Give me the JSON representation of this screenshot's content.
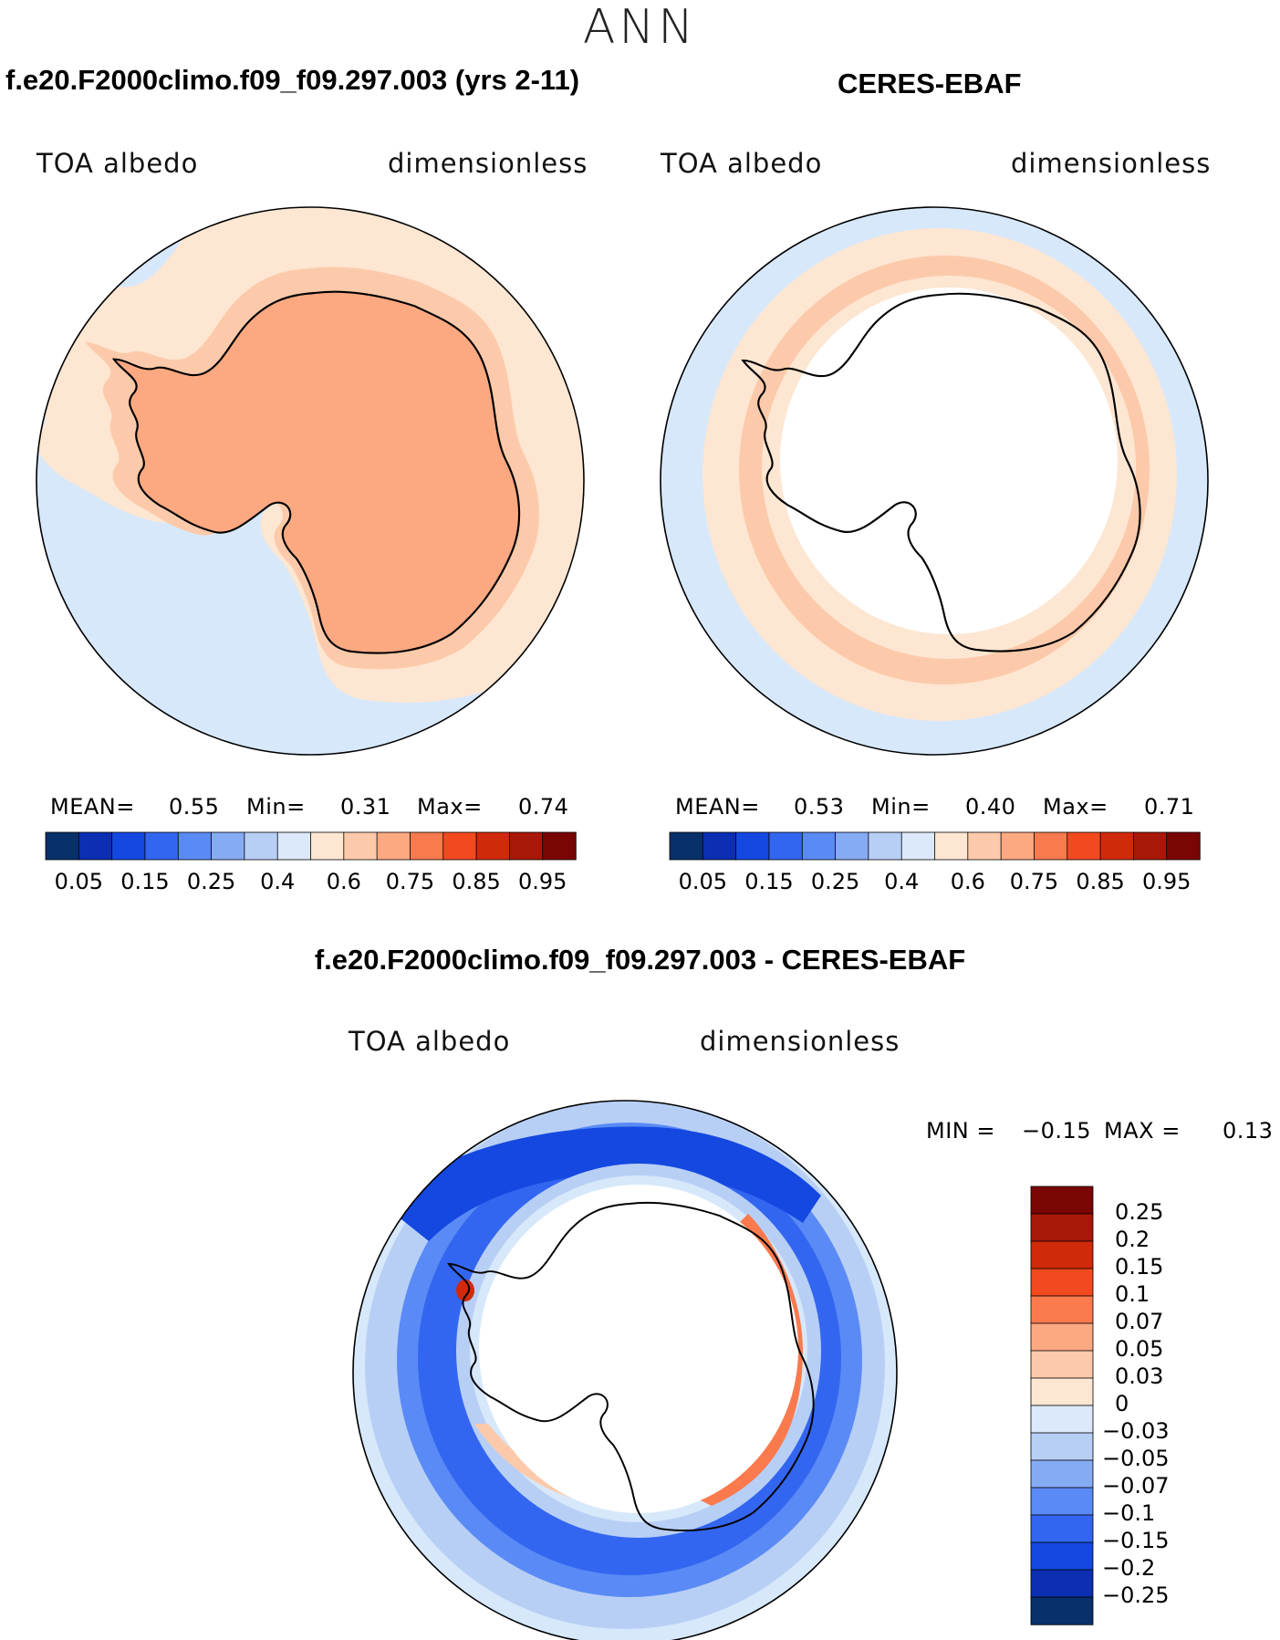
{
  "page": {
    "season": "ANN"
  },
  "panels": [
    {
      "title": "f.e20.F2000climo.f09_f09.297.003 (yrs 2-11)",
      "variable": "TOA albedo",
      "units": "dimensionless",
      "stats": {
        "mean_label": "MEAN=",
        "mean": "0.55",
        "min_label": "Min=",
        "min": "0.31",
        "max_label": "Max=",
        "max": "0.74"
      }
    },
    {
      "title": "CERES-EBAF",
      "variable": "TOA albedo",
      "units": "dimensionless",
      "stats": {
        "mean_label": "MEAN=",
        "mean": "0.53",
        "min_label": "Min=",
        "min": "0.40",
        "max_label": "Max=",
        "max": "0.71"
      }
    }
  ],
  "diff": {
    "title": "f.e20.F2000climo.f09_f09.297.003 - CERES-EBAF",
    "variable": "TOA albedo",
    "units": "dimensionless",
    "stats": {
      "min_label": "MIN =",
      "min": "−0.15",
      "max_label": "MAX =",
      "max": "0.13"
    }
  },
  "abs_colorbar": {
    "labels": [
      "0.05",
      "0.15",
      "0.25",
      "0.4",
      "0.6",
      "0.75",
      "0.85",
      "0.95"
    ],
    "colors": [
      "#08306b",
      "#0b2fb0",
      "#1448e0",
      "#3366f0",
      "#5a8af5",
      "#86abf5",
      "#b8cff5",
      "#dce9fb",
      "#fde6d2",
      "#fccaaa",
      "#fca982",
      "#fa7a4e",
      "#f24a1e",
      "#d02a0a",
      "#a81808",
      "#7a0505"
    ]
  },
  "diff_colorbar": {
    "labels": [
      "0.25",
      "0.2",
      "0.15",
      "0.1",
      "0.07",
      "0.05",
      "0.03",
      "0",
      "−0.03",
      "−0.05",
      "−0.07",
      "−0.1",
      "−0.15",
      "−0.2",
      "−0.25"
    ],
    "colors": [
      "#7a0505",
      "#a81808",
      "#d02a0a",
      "#f24a1e",
      "#fa7a4e",
      "#fca982",
      "#fccaaa",
      "#fde6d2",
      "#dce9fb",
      "#b8cff5",
      "#86abf5",
      "#5a8af5",
      "#3366f0",
      "#1448e0",
      "#0b2fb0",
      "#08306b"
    ]
  },
  "map_colors": {
    "ocean_light": "#d7e8fb",
    "sea_ice_light": "#fde6d2",
    "sea_ice_mid": "#fccaaa",
    "continent": "#fca982",
    "missing": "#ffffff",
    "diff_outer": "#b8cff5",
    "diff_mid": "#5a8af5",
    "diff_deep": "#3366f0",
    "diff_core": "#1448e0",
    "diff_pos_low": "#fccaaa",
    "diff_pos_mid": "#fa7a4e",
    "diff_pos_high": "#d02a0a"
  }
}
